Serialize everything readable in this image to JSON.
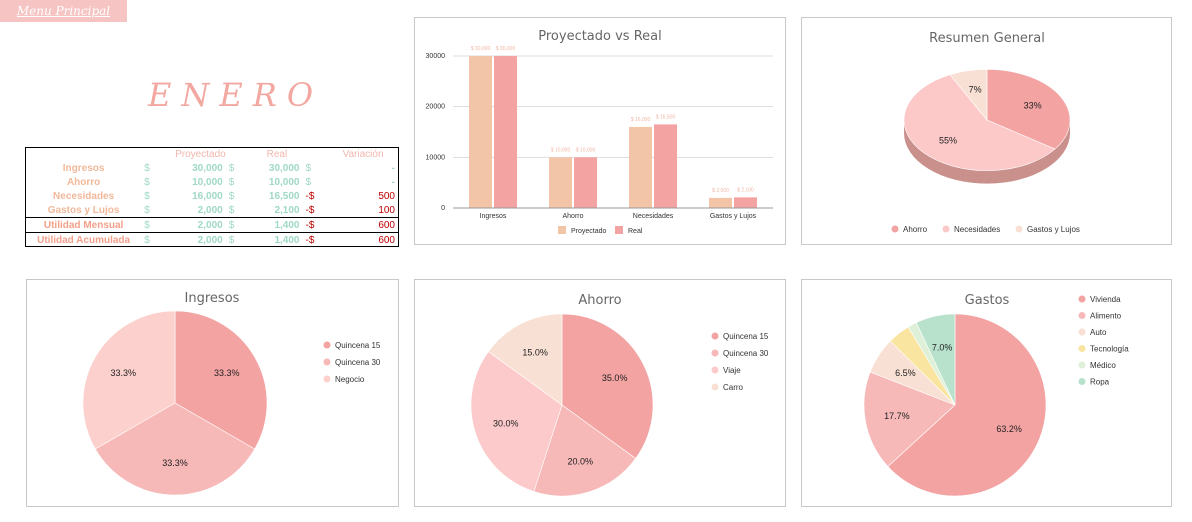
{
  "menu": {
    "label": "Menu Principal"
  },
  "month": "ENERO",
  "summary": {
    "headers": [
      "Proyectado",
      "Real",
      "Variación"
    ],
    "currency": "$",
    "rows": [
      {
        "label": "Ingresos",
        "proj": "30,000",
        "real": "30,000",
        "var_cur": "$",
        "var": "-",
        "util": false
      },
      {
        "label": "Ahorro",
        "proj": "10,000",
        "real": "10,000",
        "var_cur": "$",
        "var": "-",
        "util": false
      },
      {
        "label": "Necesidades",
        "proj": "16,000",
        "real": "16,500",
        "var_cur": "-$",
        "var": "500",
        "util": false
      },
      {
        "label": "Gastos y Lujos",
        "proj": "2,000",
        "real": "2,100",
        "var_cur": "-$",
        "var": "100",
        "util": false
      },
      {
        "label": "Utilidad Mensual",
        "proj": "2,000",
        "real": "1,400",
        "var_cur": "-$",
        "var": "600",
        "util": true
      },
      {
        "label": "Utilidad Acumulada",
        "proj": "2,000",
        "real": "1,400",
        "var_cur": "-$",
        "var": "600",
        "util": true
      }
    ]
  },
  "colors": {
    "pink1": "#f4a3a3",
    "pink2": "#f7b8b8",
    "pink3": "#fcd0cc",
    "peach": "#f9e0d4",
    "tan": "#f2c4a8",
    "yellow": "#f9e4a0",
    "lightgreen": "#dff0d8",
    "mint": "#b8e2cc"
  },
  "chart_data": [
    {
      "type": "bar",
      "title": "Proyectado vs Real",
      "categories": [
        "Ingresos",
        "Ahorro",
        "Necesidades",
        "Gastos y Lujos"
      ],
      "series": [
        {
          "name": "Proyectado",
          "values": [
            30000,
            10000,
            16000,
            2000
          ],
          "labels": [
            "$ 30,000",
            "$ 10,000",
            "$ 16,000",
            "$ 2,000"
          ],
          "color": "#f2c4a8"
        },
        {
          "name": "Real",
          "values": [
            30000,
            10000,
            16500,
            2100
          ],
          "labels": [
            "$ 30,000",
            "$ 10,000",
            "$ 16,500",
            "$ 2,100"
          ],
          "color": "#f4a3a3"
        }
      ],
      "yticks": [
        "0",
        "10000",
        "20000",
        "30000"
      ],
      "ylim": [
        0,
        30000
      ],
      "legend": "bottom",
      "grid": true
    },
    {
      "type": "pie",
      "title": "Resumen General",
      "style": "3d",
      "labels": [
        "Ahorro",
        "Necesidades",
        "Gastos y Lujos"
      ],
      "values": [
        33,
        55,
        7
      ],
      "pct_labels": [
        "33%",
        "55%",
        "7%"
      ],
      "colors": [
        "#f4a3a3",
        "#fcc8c8",
        "#f9e0d4"
      ],
      "legend": "bottom"
    },
    {
      "type": "pie",
      "title": "Ingresos",
      "labels": [
        "Quincena 15",
        "Quincena 30",
        "Negocio"
      ],
      "values": [
        33.3,
        33.3,
        33.3
      ],
      "pct_labels": [
        "33.3%",
        "33.3%",
        "33.3%"
      ],
      "colors": [
        "#f4a3a3",
        "#f7b8b8",
        "#fcd0cc"
      ],
      "legend": "right"
    },
    {
      "type": "pie",
      "title": "Ahorro",
      "labels": [
        "Quincena 15",
        "Quincena 30",
        "Viaje",
        "Carro"
      ],
      "values": [
        35.0,
        20.0,
        30.0,
        15.0
      ],
      "pct_labels": [
        "35.0%",
        "20.0%",
        "30.0%",
        "15.0%"
      ],
      "colors": [
        "#f4a3a3",
        "#f7b8b8",
        "#fccaca",
        "#f9e0d4"
      ],
      "legend": "right"
    },
    {
      "type": "pie",
      "title": "Gastos",
      "labels": [
        "Vivienda",
        "Alimento",
        "Auto",
        "Tecnología",
        "Médico",
        "Ropa"
      ],
      "values": [
        63.2,
        17.7,
        6.5,
        4.0,
        1.6,
        7.0
      ],
      "pct_labels": [
        "63.2%",
        "17.7%",
        "6.5%",
        "",
        "",
        "7.0%"
      ],
      "colors": [
        "#f4a3a3",
        "#f7b8b8",
        "#f9e0d4",
        "#f9e4a0",
        "#dff0d8",
        "#b8e2cc"
      ],
      "legend": "right"
    }
  ]
}
